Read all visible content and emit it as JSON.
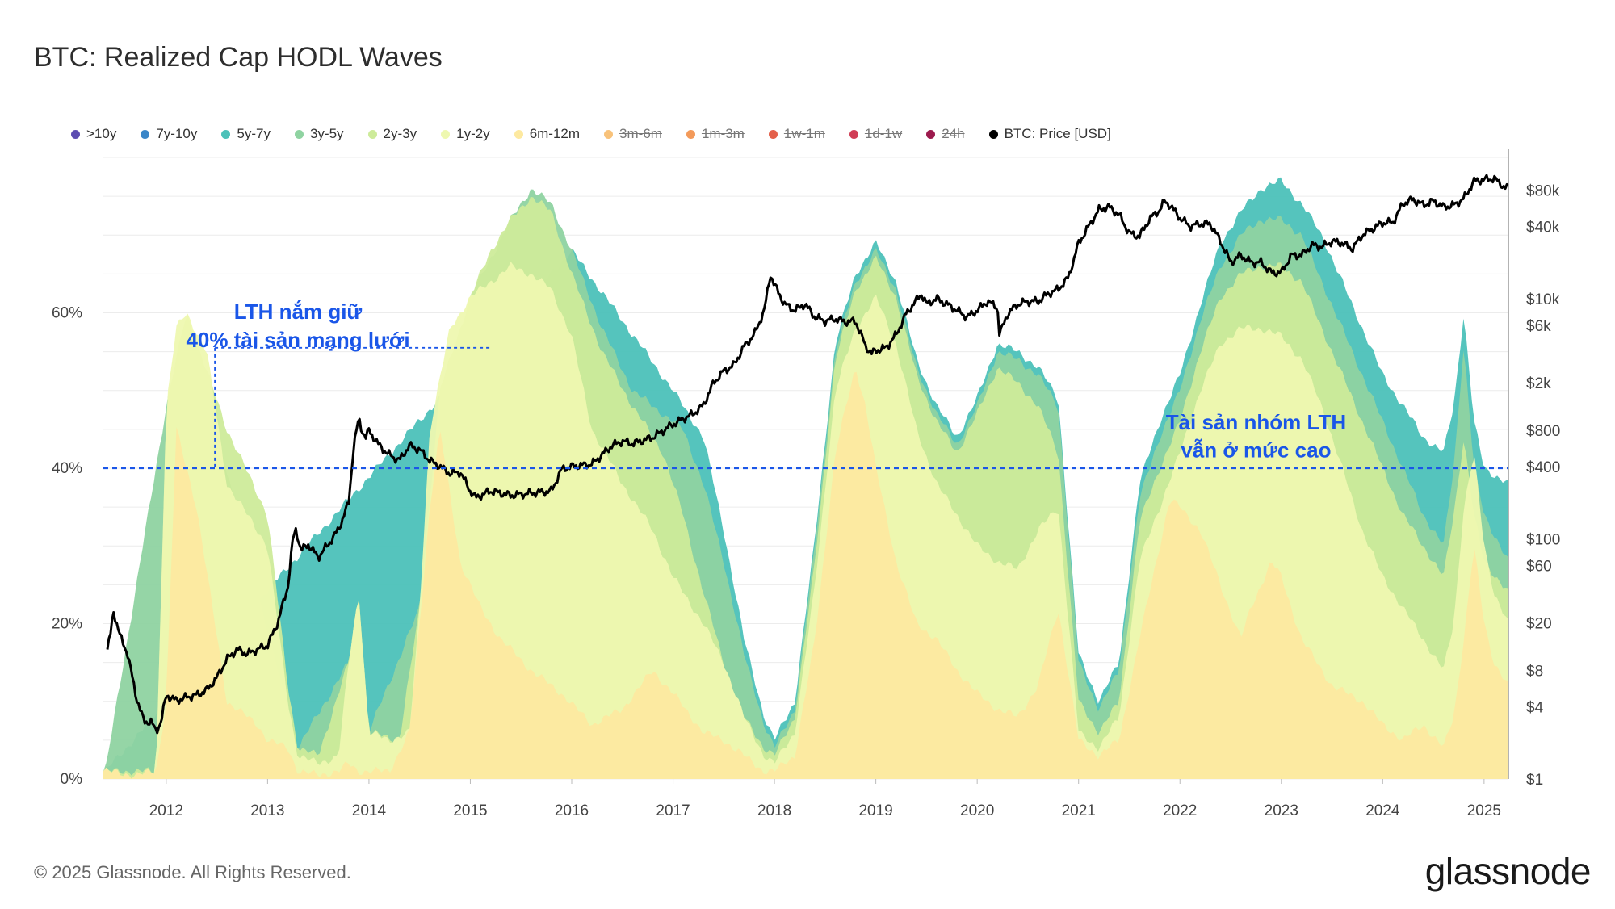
{
  "title": "BTC: Realized Cap HODL Waves",
  "footer": "© 2025 Glassnode. All Rights Reserved.",
  "logo": "glassnode",
  "colors": {
    "price_line": "#000000",
    "annotation": "#1a56e8",
    "grid": "#ececec"
  },
  "legend": [
    {
      "label": ">10y",
      "color": "#5c4db1",
      "active": true
    },
    {
      "label": "7y-10y",
      "color": "#3a86c8",
      "active": true
    },
    {
      "label": "5y-7y",
      "color": "#4cc1b9",
      "active": true
    },
    {
      "label": "3y-5y",
      "color": "#8fd3a1",
      "active": true
    },
    {
      "label": "2y-3y",
      "color": "#cdeb9a",
      "active": true
    },
    {
      "label": "1y-2y",
      "color": "#eef8b0",
      "active": true
    },
    {
      "label": "6m-12m",
      "color": "#fde9a0",
      "active": true
    },
    {
      "label": "3m-6m",
      "color": "#f8c27a",
      "active": false
    },
    {
      "label": "1m-3m",
      "color": "#f39a5a",
      "active": false
    },
    {
      "label": "1w-1m",
      "color": "#e4604a",
      "active": false
    },
    {
      "label": "1d-1w",
      "color": "#d03d55",
      "active": false
    },
    {
      "label": "24h",
      "color": "#9c1a4d",
      "active": false
    },
    {
      "label": "BTC: Price [USD]",
      "color": "#000000",
      "active": true
    }
  ],
  "chart_data": {
    "type": "area",
    "title": "BTC: Realized Cap HODL Waves",
    "x_ticks": [
      "2012",
      "2013",
      "2014",
      "2015",
      "2016",
      "2017",
      "2018",
      "2019",
      "2020",
      "2021",
      "2022",
      "2023",
      "2024",
      "2025"
    ],
    "x_range": [
      2011.38,
      2025.24
    ],
    "y_left": {
      "range": [
        0,
        80
      ],
      "ticks": [
        0,
        20,
        40,
        60
      ],
      "tick_labels": [
        "0%",
        "20%",
        "40%",
        "60%"
      ]
    },
    "y_right": {
      "scale": "log",
      "range": [
        1,
        150000
      ],
      "tick_values": [
        1,
        4,
        8,
        20,
        60,
        100,
        400,
        800,
        2000,
        6000,
        10000,
        40000,
        80000
      ],
      "tick_labels": [
        "$1",
        "$4",
        "$8",
        "$20",
        "$60",
        "$100",
        "$400",
        "$800",
        "$2k",
        "$6k",
        "$10k",
        "$40k",
        "$80k"
      ]
    },
    "stacked_series": [
      {
        "name": "6m-12m",
        "color": "#fde9a0",
        "x": [
          2011.4,
          2011.7,
          2011.9,
          2012.0,
          2012.1,
          2012.3,
          2012.6,
          2012.9,
          2013.0,
          2013.2,
          2013.3,
          2013.5,
          2013.7,
          2013.8,
          2013.9,
          2014.0,
          2014.2,
          2014.4,
          2014.5,
          2014.6,
          2014.7,
          2014.9,
          2015.1,
          2015.3,
          2015.6,
          2015.9,
          2016.2,
          2016.5,
          2016.8,
          2017.0,
          2017.3,
          2017.5,
          2017.7,
          2017.9,
          2018.0,
          2018.2,
          2018.4,
          2018.6,
          2018.8,
          2018.9,
          2019.0,
          2019.2,
          2019.4,
          2019.6,
          2019.8,
          2020.0,
          2020.2,
          2020.4,
          2020.6,
          2020.8,
          2021.0,
          2021.2,
          2021.4,
          2021.6,
          2021.8,
          2021.9,
          2022.0,
          2022.2,
          2022.4,
          2022.6,
          2022.7,
          2022.9,
          2023.0,
          2023.2,
          2023.5,
          2023.8,
          2024.0,
          2024.2,
          2024.4,
          2024.6,
          2024.7,
          2024.8,
          2024.9,
          2025.0,
          2025.1,
          2025.24
        ],
        "values": [
          1,
          0.5,
          1,
          10,
          45,
          35,
          10,
          7,
          5,
          4,
          1,
          0.5,
          1,
          2,
          1,
          1,
          1,
          6,
          20,
          35,
          45,
          28,
          22,
          18,
          14,
          11,
          7,
          9,
          14,
          11,
          6,
          5,
          3,
          1,
          1,
          3,
          18,
          42,
          53,
          48,
          40,
          28,
          20,
          18,
          14,
          11,
          9,
          8,
          12,
          22,
          5,
          3,
          5,
          18,
          30,
          36,
          35,
          32,
          25,
          18,
          22,
          28,
          26,
          18,
          12,
          10,
          7,
          5,
          7,
          4,
          8,
          18,
          30,
          20,
          15,
          12
        ]
      },
      {
        "name": "1y-2y",
        "color": "#eef8b0",
        "x": [
          2011.4,
          2011.7,
          2011.9,
          2012.0,
          2012.1,
          2012.2,
          2012.4,
          2012.6,
          2012.8,
          2013.0,
          2013.2,
          2013.3,
          2013.5,
          2013.7,
          2013.8,
          2013.9,
          2014.0,
          2014.2,
          2014.4,
          2014.5,
          2014.6,
          2014.8,
          2015.0,
          2015.2,
          2015.4,
          2015.6,
          2015.8,
          2016.0,
          2016.2,
          2016.5,
          2016.8,
          2017.0,
          2017.3,
          2017.5,
          2017.7,
          2017.9,
          2018.0,
          2018.2,
          2018.4,
          2018.6,
          2018.8,
          2019.0,
          2019.2,
          2019.4,
          2019.6,
          2019.8,
          2020.0,
          2020.2,
          2020.4,
          2020.6,
          2020.8,
          2021.0,
          2021.2,
          2021.4,
          2021.6,
          2021.8,
          2022.0,
          2022.2,
          2022.4,
          2022.6,
          2022.8,
          2023.0,
          2023.2,
          2023.4,
          2023.6,
          2023.8,
          2024.0,
          2024.2,
          2024.4,
          2024.6,
          2024.7,
          2024.8,
          2024.9,
          2025.0,
          2025.1,
          2025.24
        ],
        "values": [
          1,
          0.5,
          1,
          48,
          58,
          60,
          55,
          38,
          34,
          30,
          10,
          3,
          2,
          3,
          15,
          24,
          6,
          5,
          6,
          22,
          45,
          58,
          62,
          64,
          66,
          65,
          63,
          57,
          45,
          38,
          32,
          26,
          20,
          15,
          8,
          3,
          2,
          6,
          25,
          50,
          58,
          62,
          56,
          45,
          38,
          34,
          30,
          28,
          27,
          32,
          35,
          6,
          4,
          8,
          28,
          35,
          42,
          50,
          56,
          58,
          58,
          57,
          54,
          48,
          40,
          32,
          26,
          22,
          18,
          14,
          20,
          35,
          42,
          30,
          24,
          20
        ]
      },
      {
        "name": "2y-3y",
        "color": "#cdeb9a",
        "x": [
          2011.4,
          2011.9,
          2012.0,
          2012.2,
          2012.6,
          2013.0,
          2013.2,
          2013.3,
          2013.5,
          2013.8,
          2013.9,
          2014.0,
          2014.3,
          2014.5,
          2014.7,
          2015.0,
          2015.2,
          2015.4,
          2015.6,
          2015.8,
          2016.0,
          2016.3,
          2016.6,
          2016.9,
          2017.1,
          2017.3,
          2017.5,
          2017.7,
          2017.9,
          2018.0,
          2018.2,
          2018.4,
          2018.6,
          2018.8,
          2019.0,
          2019.2,
          2019.4,
          2019.6,
          2019.8,
          2020.0,
          2020.2,
          2020.4,
          2020.6,
          2020.8,
          2021.0,
          2021.2,
          2021.4,
          2021.6,
          2021.8,
          2022.0,
          2022.2,
          2022.4,
          2022.6,
          2022.8,
          2023.0,
          2023.2,
          2023.4,
          2023.6,
          2023.8,
          2024.0,
          2024.2,
          2024.4,
          2024.6,
          2024.7,
          2024.8,
          2024.9,
          2025.0,
          2025.24
        ],
        "values": [
          1,
          1,
          48,
          60,
          45,
          34,
          12,
          4,
          3,
          15,
          24,
          6,
          5,
          22,
          50,
          62,
          68,
          72,
          75,
          73,
          65,
          55,
          48,
          42,
          34,
          24,
          15,
          8,
          4,
          3,
          8,
          28,
          54,
          63,
          67,
          62,
          52,
          46,
          42,
          47,
          53,
          51,
          48,
          42,
          10,
          6,
          10,
          33,
          40,
          46,
          55,
          62,
          65,
          66,
          66,
          64,
          58,
          52,
          46,
          40,
          34,
          30,
          26,
          34,
          44,
          34,
          28,
          24
        ]
      },
      {
        "name": "3y-5y",
        "color": "#8fd3a1",
        "x": [
          2011.4,
          2012.0,
          2012.2,
          2013.3,
          2013.8,
          2013.9,
          2014.0,
          2014.5,
          2014.7,
          2015.0,
          2015.4,
          2015.6,
          2015.8,
          2016.0,
          2016.3,
          2016.6,
          2016.9,
          2017.1,
          2017.3,
          2017.5,
          2017.7,
          2017.9,
          2018.0,
          2018.2,
          2018.4,
          2018.6,
          2018.8,
          2019.0,
          2019.2,
          2019.4,
          2019.6,
          2019.8,
          2020.0,
          2020.2,
          2020.4,
          2020.6,
          2020.8,
          2021.0,
          2021.2,
          2021.4,
          2021.6,
          2021.8,
          2022.0,
          2022.2,
          2022.4,
          2022.6,
          2022.8,
          2023.0,
          2023.2,
          2023.4,
          2023.6,
          2023.8,
          2024.0,
          2024.2,
          2024.4,
          2024.6,
          2024.7,
          2024.8,
          2024.9,
          2025.0,
          2025.24
        ],
        "values": [
          1,
          48,
          60,
          4,
          15,
          24,
          6,
          22,
          50,
          62,
          72,
          76,
          74,
          68,
          58,
          50,
          47,
          45,
          38,
          28,
          16,
          7,
          4,
          9,
          30,
          55,
          64,
          68,
          63,
          53,
          47,
          43,
          48,
          55,
          54,
          52,
          48,
          15,
          9,
          14,
          36,
          44,
          50,
          59,
          66,
          70,
          72,
          72,
          70,
          64,
          58,
          52,
          46,
          40,
          34,
          30,
          40,
          56,
          40,
          34,
          28
        ]
      },
      {
        "name": "5y-7y",
        "color": "#4cc1b9",
        "x": [
          2011.4,
          2016.0,
          2017.0,
          2017.3,
          2017.5,
          2017.7,
          2017.9,
          2018.0,
          2018.2,
          2018.4,
          2018.6,
          2018.8,
          2019.0,
          2019.2,
          2019.4,
          2019.6,
          2019.8,
          2020.0,
          2020.2,
          2020.4,
          2020.6,
          2020.8,
          2021.0,
          2021.2,
          2021.4,
          2021.6,
          2021.8,
          2022.0,
          2022.2,
          2022.4,
          2022.6,
          2022.8,
          2023.0,
          2023.2,
          2023.4,
          2023.6,
          2023.8,
          2024.0,
          2024.2,
          2024.4,
          2024.6,
          2024.7,
          2024.8,
          2024.9,
          2025.0,
          2025.24
        ],
        "values": [
          1,
          68,
          50,
          44,
          32,
          18,
          8,
          5,
          10,
          31,
          56,
          65,
          69,
          64,
          54,
          48,
          44,
          49,
          56,
          55,
          53,
          49,
          16,
          10,
          15,
          38,
          46,
          52,
          61,
          69,
          73,
          76,
          77,
          74,
          70,
          64,
          58,
          52,
          48,
          44,
          42,
          48,
          60,
          46,
          40,
          38
        ]
      },
      {
        "name": ">10y",
        "color": "#5c4db1",
        "x": [
          2011.4,
          2023.0,
          2024.0,
          2024.6,
          2024.8,
          2025.0,
          2025.24
        ],
        "values": [
          0,
          0,
          0,
          0,
          0,
          0.3,
          0.6
        ]
      }
    ],
    "price_series": {
      "name": "BTC: Price [USD]",
      "x": [
        2011.42,
        2011.45,
        2011.48,
        2011.55,
        2011.62,
        2011.7,
        2011.78,
        2011.85,
        2011.9,
        2011.95,
        2012.0,
        2012.1,
        2012.2,
        2012.3,
        2012.4,
        2012.5,
        2012.6,
        2012.7,
        2012.8,
        2012.9,
        2013.0,
        2013.1,
        2013.2,
        2013.25,
        2013.28,
        2013.33,
        2013.4,
        2013.5,
        2013.55,
        2013.6,
        2013.7,
        2013.8,
        2013.85,
        2013.9,
        2013.93,
        2013.97,
        2014.0,
        2014.1,
        2014.2,
        2014.3,
        2014.4,
        2014.5,
        2014.6,
        2014.7,
        2014.8,
        2014.9,
        2015.0,
        2015.05,
        2015.2,
        2015.4,
        2015.6,
        2015.8,
        2015.9,
        2016.0,
        2016.2,
        2016.4,
        2016.5,
        2016.6,
        2016.8,
        2017.0,
        2017.1,
        2017.2,
        2017.3,
        2017.4,
        2017.5,
        2017.6,
        2017.7,
        2017.8,
        2017.9,
        2017.96,
        2018.0,
        2018.1,
        2018.2,
        2018.3,
        2018.4,
        2018.5,
        2018.6,
        2018.7,
        2018.8,
        2018.9,
        2018.96,
        2019.0,
        2019.1,
        2019.2,
        2019.3,
        2019.45,
        2019.5,
        2019.6,
        2019.7,
        2019.8,
        2019.9,
        2020.0,
        2020.1,
        2020.2,
        2020.22,
        2020.3,
        2020.4,
        2020.5,
        2020.6,
        2020.7,
        2020.8,
        2020.9,
        2021.0,
        2021.1,
        2021.2,
        2021.3,
        2021.4,
        2021.5,
        2021.6,
        2021.7,
        2021.8,
        2021.85,
        2021.9,
        2022.0,
        2022.1,
        2022.2,
        2022.3,
        2022.4,
        2022.5,
        2022.6,
        2022.7,
        2022.8,
        2022.9,
        2023.0,
        2023.1,
        2023.2,
        2023.3,
        2023.4,
        2023.5,
        2023.6,
        2023.7,
        2023.8,
        2023.9,
        2024.0,
        2024.1,
        2024.2,
        2024.3,
        2024.4,
        2024.5,
        2024.6,
        2024.7,
        2024.8,
        2024.9,
        2025.0,
        2025.1,
        2025.2,
        2025.24
      ],
      "values": [
        12,
        16,
        25,
        15,
        11,
        5,
        3,
        3,
        2.5,
        3,
        5,
        4.5,
        4.8,
        5,
        5.5,
        7,
        10,
        12,
        11,
        12,
        13,
        20,
        40,
        100,
        120,
        80,
        90,
        70,
        80,
        90,
        120,
        200,
        600,
        1000,
        800,
        700,
        800,
        600,
        500,
        450,
        600,
        550,
        450,
        400,
        350,
        360,
        250,
        220,
        250,
        230,
        240,
        250,
        380,
        400,
        420,
        600,
        650,
        620,
        700,
        900,
        1000,
        1100,
        1300,
        2000,
        2500,
        2800,
        4000,
        5000,
        8000,
        16000,
        13000,
        9000,
        8000,
        9000,
        7000,
        6500,
        6800,
        6400,
        6500,
        4000,
        3500,
        3700,
        3900,
        5000,
        7500,
        11000,
        9000,
        10000,
        9000,
        8000,
        7000,
        8000,
        9500,
        8500,
        5000,
        7500,
        9000,
        9500,
        9500,
        11000,
        12000,
        15000,
        29000,
        40000,
        55000,
        58000,
        50000,
        35000,
        33000,
        46000,
        55000,
        65000,
        60000,
        47000,
        40000,
        42000,
        42000,
        30000,
        20000,
        23000,
        20000,
        20000,
        16500,
        16500,
        23000,
        23000,
        28000,
        27000,
        30000,
        29000,
        26000,
        34000,
        38000,
        43000,
        43000,
        62000,
        67000,
        60000,
        65000,
        58000,
        60000,
        68000,
        95000,
        98000,
        100000,
        85000,
        83000
      ]
    },
    "annotations": [
      {
        "text_line1": "LTH nắm giữ",
        "text_line2": "40% tài sản mạng lưới"
      },
      {
        "text_line1": "Tài sản nhóm LTH",
        "text_line2": "vẫn ở mức cao"
      }
    ],
    "reference_line": {
      "y": 40,
      "style": "dashed"
    }
  }
}
